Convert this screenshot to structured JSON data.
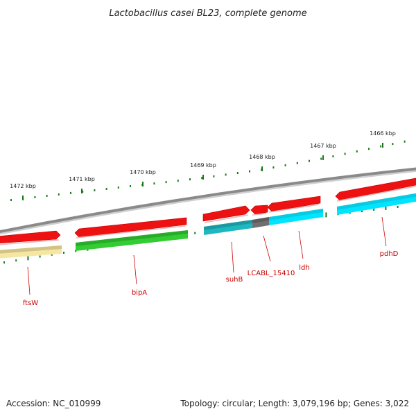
{
  "title": "Lactobacillus casei BL23, complete genome",
  "footer": {
    "accession": "Accession: NC_010999",
    "summary": "Topology: circular; Length: 3,079,196 bp; Genes: 3,022"
  },
  "scale_labels": [
    "1472 kbp",
    "1471 kbp",
    "1470 kbp",
    "1469 kbp",
    "1468 kbp",
    "1467 kbp",
    "1466 kbp"
  ],
  "genes": [
    {
      "name": "ftsW",
      "color": "#f5e7a3"
    },
    {
      "name": "bipA",
      "color": "#33cc33"
    },
    {
      "name": "suhB",
      "color": "#20b8c0"
    },
    {
      "name": "LCABL_15410",
      "color": "#707070"
    },
    {
      "name": "ldh",
      "color": "#00e5ff"
    },
    {
      "name": "pdhD",
      "color": "#00e5ff"
    }
  ],
  "colors": {
    "backbone": "#8a8a8a",
    "forward_strand": "#ee1111",
    "tick": "#1a7a1a",
    "label": "#cc0000",
    "leader": "#cc0000"
  }
}
